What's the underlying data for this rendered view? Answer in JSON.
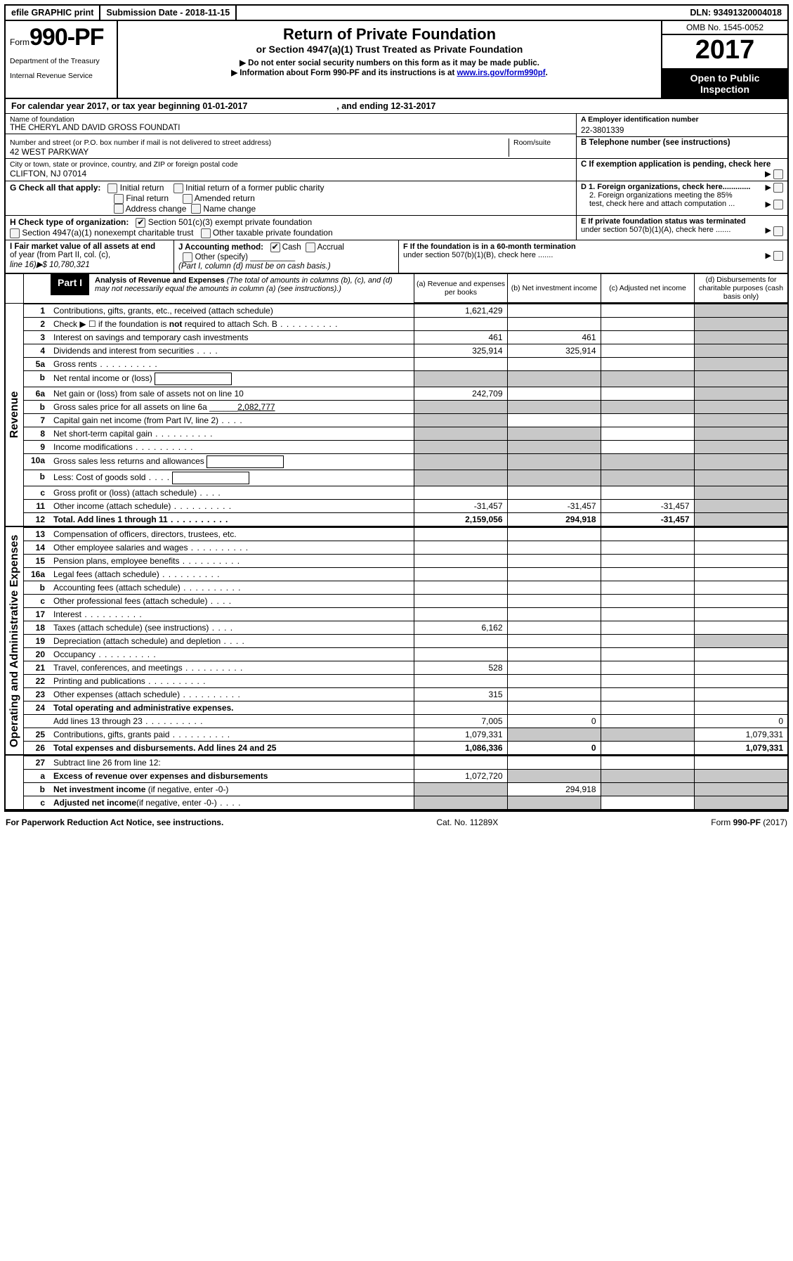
{
  "top": {
    "efile": "efile GRAPHIC print",
    "submission_label": "Submission Date - 2018-11-15",
    "dln": "DLN: 93491320004018"
  },
  "header": {
    "form_prefix": "Form",
    "form_no": "990-PF",
    "dept1": "Department of the Treasury",
    "dept2": "Internal Revenue Service",
    "title": "Return of Private Foundation",
    "subtitle": "or Section 4947(a)(1) Trust Treated as Private Foundation",
    "note1": "▶ Do not enter social security numbers on this form as it may be made public.",
    "note2_pre": "▶ Information about Form 990-PF and its instructions is at ",
    "note2_link": "www.irs.gov/form990pf",
    "omb": "OMB No. 1545-0052",
    "year": "2017",
    "open1": "Open to Public",
    "open2": "Inspection"
  },
  "calyear": {
    "pre": "For calendar year 2017, or tax year beginning ",
    "begin": "01-01-2017",
    "mid": ", and ending ",
    "end": "12-31-2017"
  },
  "id": {
    "name_label": "Name of foundation",
    "name": "THE CHERYL AND DAVID GROSS FOUNDATI",
    "ein_label": "A Employer identification number",
    "ein": "22-3801339",
    "addr_label": "Number and street (or P.O. box number if mail is not delivered to street address)",
    "room_label": "Room/suite",
    "addr": "42 WEST PARKWAY",
    "tel_label": "B Telephone number (see instructions)",
    "city_label": "City or town, state or province, country, and ZIP or foreign postal code",
    "city": "CLIFTON, NJ  07014",
    "c_label": "C If exemption application is pending, check here"
  },
  "g": {
    "label": "G Check all that apply:",
    "o1": "Initial return",
    "o2": "Initial return of a former public charity",
    "o3": "Final return",
    "o4": "Amended return",
    "o5": "Address change",
    "o6": "Name change"
  },
  "h": {
    "label": "H Check type of organization:",
    "o1": "Section 501(c)(3) exempt private foundation",
    "o2": "Section 4947(a)(1) nonexempt charitable trust",
    "o3": "Other taxable private foundation"
  },
  "d": {
    "d1": "D 1. Foreign organizations, check here.............",
    "d2a": "2. Foreign organizations meeting the 85%",
    "d2b": "test, check here and attach computation ...",
    "e1": "E  If private foundation status was terminated",
    "e2": "under section 507(b)(1)(A), check here .......",
    "f1": "F  If the foundation is in a 60-month termination",
    "f2": "under section 507(b)(1)(B), check here ......."
  },
  "ifj": {
    "i1": "I Fair market value of all assets at end",
    "i2": "of year (from Part II, col. (c),",
    "i3": "line 16)▶$  10,780,321",
    "j1": "J Accounting method:",
    "jcash": "Cash",
    "jacc": "Accrual",
    "j2": "Other (specify)",
    "j3": "(Part I, column (d) must be on cash basis.)"
  },
  "part1": {
    "label": "Part I",
    "title": "Analysis of Revenue and Expenses",
    "title_note": " (The total of amounts in columns (b), (c), and (d) may not necessarily equal the amounts in column (a) (see instructions).)",
    "col_a": "(a)   Revenue and expenses per books",
    "col_b": "(b)  Net investment income",
    "col_c": "(c)  Adjusted net income",
    "col_d": "(d)  Disbursements for charitable purposes (cash basis only)"
  },
  "side": {
    "rev": "Revenue",
    "exp": "Operating and Administrative Expenses"
  },
  "rows_rev": [
    {
      "n": "1",
      "d": "Contributions, gifts, grants, etc., received (attach schedule)",
      "a": "1,621,429"
    },
    {
      "n": "2",
      "d": "Check ▶ ☐ if the foundation is <b>not</b> required to attach Sch. B",
      "dots": true
    },
    {
      "n": "3",
      "d": "Interest on savings and temporary cash investments",
      "a": "461",
      "b": "461"
    },
    {
      "n": "4",
      "d": "Dividends and interest from securities",
      "dots": "s",
      "a": "325,914",
      "b": "325,914"
    },
    {
      "n": "5a",
      "d": "Gross rents",
      "dots": true
    },
    {
      "n": "b",
      "d": "Net rental income or (loss)",
      "sub": true,
      "noval": true
    },
    {
      "n": "6a",
      "d": "Net gain or (loss) from sale of assets not on line 10",
      "a": "242,709"
    },
    {
      "n": "b",
      "d": "Gross sales price for all assets on line 6a ______<u>2,082,777</u>",
      "noval": true
    },
    {
      "n": "7",
      "d": "Capital gain net income (from Part IV, line 2)",
      "dots": "s",
      "greyA": true
    },
    {
      "n": "8",
      "d": "Net short-term capital gain",
      "dots": true,
      "greyA": true,
      "greyB": true
    },
    {
      "n": "9",
      "d": "Income modifications",
      "dots": true,
      "greyA": true,
      "greyB": true
    },
    {
      "n": "10a",
      "d": "Gross sales less returns and allowances",
      "sub": true,
      "noval": true
    },
    {
      "n": "b",
      "d": "Less: Cost of goods sold",
      "dots": "s",
      "sub": true,
      "noval": true
    },
    {
      "n": "c",
      "d": "Gross profit or (loss) (attach schedule)",
      "dots": "s"
    },
    {
      "n": "11",
      "d": "Other income (attach schedule)",
      "dots": true,
      "a": "-31,457",
      "b": "-31,457",
      "c": "-31,457"
    },
    {
      "n": "12",
      "d": "<b>Total.</b> Add lines 1 through 11",
      "dots": true,
      "a": "2,159,056",
      "b": "294,918",
      "c": "-31,457",
      "bold": true
    }
  ],
  "rows_exp": [
    {
      "n": "13",
      "d": "Compensation of officers, directors, trustees, etc."
    },
    {
      "n": "14",
      "d": "Other employee salaries and wages",
      "dots": true
    },
    {
      "n": "15",
      "d": "Pension plans, employee benefits",
      "dots": true
    },
    {
      "n": "16a",
      "d": "Legal fees (attach schedule)",
      "dots": true
    },
    {
      "n": "b",
      "d": "Accounting fees (attach schedule)",
      "dots": true
    },
    {
      "n": "c",
      "d": "Other professional fees (attach schedule)",
      "dots": "s"
    },
    {
      "n": "17",
      "d": "Interest",
      "dots": true
    },
    {
      "n": "18",
      "d": "Taxes (attach schedule) (see instructions)",
      "dots": "s",
      "a": "6,162"
    },
    {
      "n": "19",
      "d": "Depreciation (attach schedule) and depletion",
      "dots": "s",
      "greyD": true
    },
    {
      "n": "20",
      "d": "Occupancy",
      "dots": true
    },
    {
      "n": "21",
      "d": "Travel, conferences, and meetings",
      "dots": true,
      "a": "528"
    },
    {
      "n": "22",
      "d": "Printing and publications",
      "dots": true
    },
    {
      "n": "23",
      "d": "Other expenses (attach schedule)",
      "dots": true,
      "a": "315"
    },
    {
      "n": "24",
      "d": "<b>Total operating and administrative expenses.</b>"
    },
    {
      "n": "",
      "d": "Add lines 13 through 23",
      "dots": true,
      "a": "7,005",
      "b": "0",
      "dv": "0"
    },
    {
      "n": "25",
      "d": "Contributions, gifts, grants paid",
      "dots": true,
      "a": "1,079,331",
      "greyB": true,
      "greyC": true,
      "dv": "1,079,331"
    },
    {
      "n": "26",
      "d": "<b>Total expenses and disbursements.</b> Add lines 24 and 25",
      "a": "1,086,336",
      "b": "0",
      "dv": "1,079,331",
      "bold": true
    }
  ],
  "rows_bot": [
    {
      "n": "27",
      "d": "Subtract line 26 from line 12:"
    },
    {
      "n": "a",
      "d": "<b>Excess of revenue over expenses and disbursements</b>",
      "a": "1,072,720",
      "greyB": true,
      "greyC": true,
      "greyD": true
    },
    {
      "n": "b",
      "d": "<b>Net investment income</b> (if negative, enter -0-)",
      "greyA": true,
      "b": "294,918",
      "greyC": true,
      "greyD": true
    },
    {
      "n": "c",
      "d": "<b>Adjusted net income</b>(if negative, enter -0-)",
      "dots": "s",
      "greyA": true,
      "greyB": true,
      "greyD": true
    }
  ],
  "footer": {
    "l": "For Paperwork Reduction Act Notice, see instructions.",
    "m": "Cat. No. 11289X",
    "r": "Form 990-PF (2017)"
  }
}
